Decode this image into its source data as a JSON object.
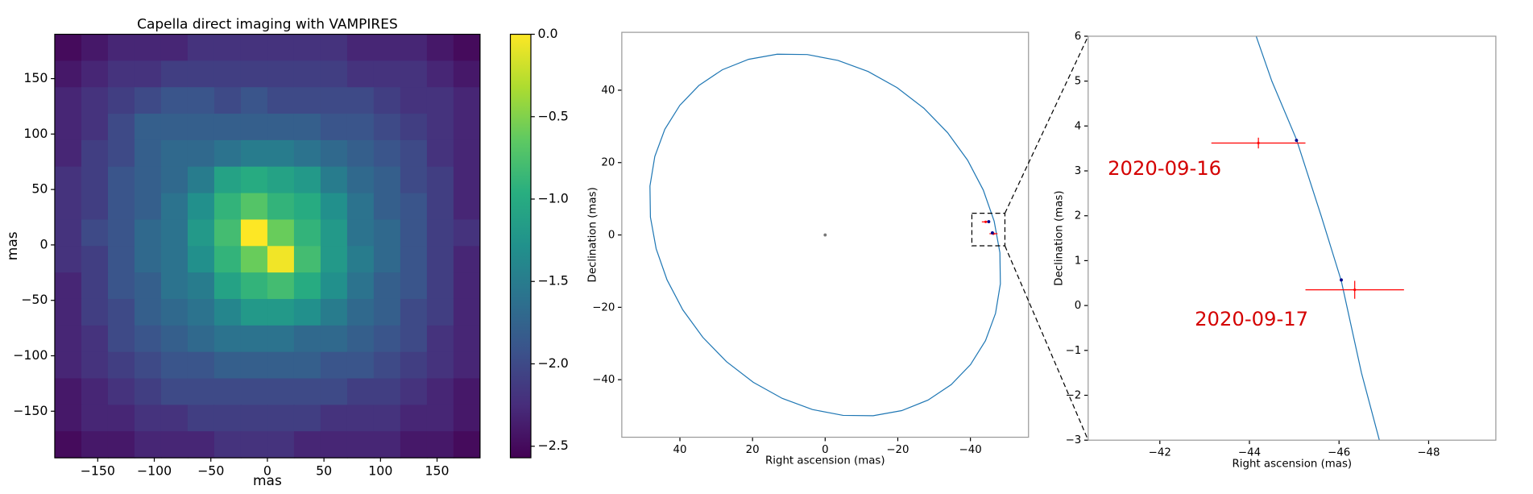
{
  "chart_data": [
    {
      "type": "heatmap",
      "title": "Capella direct imaging with VAMPIRES",
      "xlabel": "mas",
      "ylabel": "mas",
      "xlim": [
        -188,
        188
      ],
      "ylim": [
        -192,
        190
      ],
      "xticks": [
        {
          "value": -150,
          "label": "−150"
        },
        {
          "value": -100,
          "label": "−100"
        },
        {
          "value": -50,
          "label": "−50"
        },
        0,
        50,
        100,
        150
      ],
      "yticks": [
        {
          "value": -150,
          "label": "−150"
        },
        {
          "value": -100,
          "label": "−100"
        },
        {
          "value": -50,
          "label": "−50"
        },
        0,
        50,
        100,
        150
      ],
      "colormap": "viridis",
      "clim": [
        -2.57,
        0
      ],
      "cticks": [
        {
          "value": 0,
          "label": "0.0"
        },
        {
          "value": -0.5,
          "label": "−0.5"
        },
        {
          "value": -1,
          "label": "−1.0"
        },
        {
          "value": -1.5,
          "label": "−1.5"
        },
        {
          "value": -2,
          "label": "−2.0"
        },
        {
          "value": -2.5,
          "label": "−2.5"
        }
      ],
      "z": [
        [
          -2.5,
          -2.4,
          -2.3,
          -2.3,
          -2.3,
          -2.2,
          -2.2,
          -2.2,
          -2.2,
          -2.2,
          -2.2,
          -2.3,
          -2.3,
          -2.3,
          -2.4,
          -2.5
        ],
        [
          -2.4,
          -2.3,
          -2.2,
          -2.2,
          -2.1,
          -2.1,
          -2.1,
          -2.1,
          -2.1,
          -2.1,
          -2.1,
          -2.2,
          -2.2,
          -2.2,
          -2.3,
          -2.4
        ],
        [
          -2.3,
          -2.2,
          -2.1,
          -2.0,
          -1.9,
          -1.9,
          -2.0,
          -1.9,
          -2.0,
          -2.0,
          -2.0,
          -2.0,
          -2.1,
          -2.2,
          -2.2,
          -2.3
        ],
        [
          -2.3,
          -2.2,
          -2.0,
          -1.8,
          -1.8,
          -1.8,
          -1.8,
          -1.8,
          -1.8,
          -1.8,
          -1.9,
          -1.9,
          -2.0,
          -2.1,
          -2.2,
          -2.3
        ],
        [
          -2.3,
          -2.1,
          -2.0,
          -1.8,
          -1.7,
          -1.7,
          -1.6,
          -1.5,
          -1.5,
          -1.6,
          -1.7,
          -1.8,
          -1.9,
          -2.0,
          -2.2,
          -2.3
        ],
        [
          -2.2,
          -2.1,
          -1.9,
          -1.8,
          -1.7,
          -1.5,
          -1.1,
          -1.0,
          -1.1,
          -1.2,
          -1.5,
          -1.7,
          -1.8,
          -2.0,
          -2.1,
          -2.3
        ],
        [
          -2.2,
          -2.1,
          -1.9,
          -1.8,
          -1.6,
          -1.3,
          -0.9,
          -0.7,
          -0.9,
          -1.0,
          -1.3,
          -1.6,
          -1.8,
          -1.9,
          -2.1,
          -2.3
        ],
        [
          -2.2,
          -2.0,
          -1.9,
          -1.7,
          -1.6,
          -1.2,
          -0.8,
          0.0,
          -0.6,
          -0.9,
          -1.2,
          -1.6,
          -1.7,
          -1.9,
          -2.1,
          -2.2
        ],
        [
          -2.2,
          -2.1,
          -1.9,
          -1.7,
          -1.6,
          -1.3,
          -0.9,
          -0.6,
          -0.05,
          -0.8,
          -1.2,
          -1.5,
          -1.7,
          -1.9,
          -2.1,
          -2.3
        ],
        [
          -2.3,
          -2.1,
          -1.9,
          -1.8,
          -1.6,
          -1.5,
          -1.1,
          -0.9,
          -0.8,
          -1.0,
          -1.3,
          -1.6,
          -1.8,
          -1.9,
          -2.1,
          -2.3
        ],
        [
          -2.3,
          -2.1,
          -2.0,
          -1.8,
          -1.7,
          -1.6,
          -1.4,
          -1.2,
          -1.2,
          -1.3,
          -1.5,
          -1.7,
          -1.8,
          -2.0,
          -2.1,
          -2.3
        ],
        [
          -2.3,
          -2.2,
          -2.0,
          -1.9,
          -1.8,
          -1.7,
          -1.6,
          -1.6,
          -1.6,
          -1.7,
          -1.7,
          -1.8,
          -1.9,
          -2.0,
          -2.2,
          -2.3
        ],
        [
          -2.3,
          -2.2,
          -2.1,
          -2.0,
          -1.9,
          -1.9,
          -1.8,
          -1.8,
          -1.8,
          -1.8,
          -1.9,
          -1.9,
          -2.0,
          -2.1,
          -2.2,
          -2.3
        ],
        [
          -2.4,
          -2.3,
          -2.2,
          -2.1,
          -2.0,
          -2.0,
          -2.0,
          -2.0,
          -2.0,
          -2.0,
          -2.0,
          -2.1,
          -2.1,
          -2.2,
          -2.3,
          -2.4
        ],
        [
          -2.4,
          -2.3,
          -2.3,
          -2.2,
          -2.2,
          -2.1,
          -2.1,
          -2.1,
          -2.1,
          -2.1,
          -2.2,
          -2.2,
          -2.2,
          -2.3,
          -2.3,
          -2.4
        ],
        [
          -2.5,
          -2.4,
          -2.4,
          -2.3,
          -2.3,
          -2.3,
          -2.2,
          -2.2,
          -2.2,
          -2.3,
          -2.3,
          -2.3,
          -2.3,
          -2.4,
          -2.4,
          -2.5
        ]
      ]
    },
    {
      "type": "line",
      "xlabel": "Right ascension (mas)",
      "ylabel": "Declination (mas)",
      "xlim": [
        56,
        -56
      ],
      "ylim": [
        -55.9,
        56
      ],
      "xticks": [
        40,
        20,
        0,
        {
          "value": -20,
          "label": "−20"
        },
        {
          "value": -40,
          "label": "−40"
        }
      ],
      "yticks": [
        40,
        20,
        0,
        {
          "value": -20,
          "label": "−20"
        },
        {
          "value": -40,
          "label": "−40"
        }
      ],
      "series": [
        {
          "style": "line",
          "color": "#1f77b4",
          "x": [
            34.71,
            28.33,
            21.09,
            13.21,
            4.93,
            -3.5,
            -11.82,
            -19.8,
            -27.16,
            -33.7,
            -39.22,
            -43.54,
            -46.54,
            -48.12,
            -48.25,
            -46.91,
            -44.15,
            -40.03,
            -34.71,
            -28.33,
            -21.09,
            -13.21,
            -4.93,
            3.5,
            11.82,
            19.8,
            27.16,
            33.7,
            39.22,
            43.54,
            46.54,
            48.12,
            48.25,
            46.91,
            44.15,
            40.03,
            34.71
          ],
          "y": [
            41.36,
            45.64,
            48.54,
            49.96,
            49.86,
            48.25,
            45.17,
            40.72,
            35.03,
            28.28,
            20.67,
            12.42,
            3.81,
            -4.93,
            -13.5,
            -21.68,
            -29.2,
            -35.82,
            -41.36,
            -45.64,
            -48.54,
            -49.96,
            -49.86,
            -48.25,
            -45.17,
            -40.72,
            -35.03,
            -28.28,
            -20.67,
            -12.42,
            -3.81,
            4.93,
            13.5,
            21.68,
            29.2,
            35.82,
            41.36
          ]
        },
        {
          "style": "dot",
          "color": "#777777",
          "x": [
            0
          ],
          "y": [
            0
          ]
        },
        {
          "style": "errorbar",
          "color": "#ff0000",
          "x": [
            -44.2,
            -46.35
          ],
          "y": [
            3.62,
            0.35
          ],
          "xerr": [
            1.05,
            1.1
          ],
          "yerr": [
            0.12,
            0.2
          ]
        },
        {
          "style": "dot",
          "color": "#00008b",
          "x": [
            -45.05,
            -46.05
          ],
          "y": [
            3.68,
            0.57
          ]
        }
      ]
    },
    {
      "type": "line",
      "xlabel": "Right ascension (mas)",
      "ylabel": "Declination (mas)",
      "xlim": [
        -40.4,
        -49.5
      ],
      "ylim": [
        -3,
        6
      ],
      "xticks": [
        {
          "value": -42,
          "label": "−42"
        },
        {
          "value": -44,
          "label": "−44"
        },
        {
          "value": -46,
          "label": "−46"
        },
        {
          "value": -48,
          "label": "−48"
        }
      ],
      "yticks": [
        {
          "value": -3,
          "label": "−3"
        },
        {
          "value": -2,
          "label": "−2"
        },
        {
          "value": -1,
          "label": "−1"
        },
        0,
        1,
        2,
        3,
        4,
        5,
        6
      ],
      "annotations": [
        "2020-09-16",
        "2020-09-17"
      ],
      "annotation_color": "#d40000",
      "series": [
        {
          "style": "line",
          "color": "#1f77b4",
          "x": [
            -44.15,
            -44.5,
            -45.05,
            -45.6,
            -46.05,
            -46.5,
            -46.9
          ],
          "y": [
            6,
            5,
            3.7,
            2,
            0.55,
            -1.5,
            -3
          ]
        },
        {
          "style": "errorbar",
          "color": "#ff0000",
          "x": [
            -44.2,
            -46.35
          ],
          "y": [
            3.62,
            0.35
          ],
          "xerr": [
            1.05,
            1.1
          ],
          "yerr": [
            0.12,
            0.2
          ]
        },
        {
          "style": "dot",
          "color": "#00008b",
          "x": [
            -45.05,
            -46.05
          ],
          "y": [
            3.68,
            0.57
          ]
        }
      ]
    }
  ]
}
